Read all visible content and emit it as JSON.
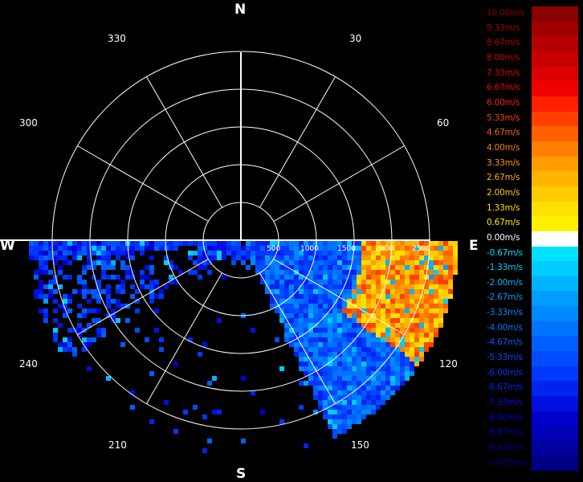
{
  "compass": {
    "north": "N",
    "east": "E",
    "south": "S",
    "west": "W"
  },
  "bearings": [
    "30",
    "60",
    "120",
    "150",
    "210",
    "240",
    "300",
    "330"
  ],
  "range_labels": [
    "500",
    "1000",
    "1500",
    "2000",
    "2500"
  ],
  "legend": {
    "title": "",
    "items": [
      {
        "label": "10.00m/s",
        "color": "#8b0000"
      },
      {
        "label": "9.33m/s",
        "color": "#a00000"
      },
      {
        "label": "8.67m/s",
        "color": "#b40000"
      },
      {
        "label": "8.00m/s",
        "color": "#c80000"
      },
      {
        "label": "7.33m/s",
        "color": "#dc0000"
      },
      {
        "label": "6.67m/s",
        "color": "#f00000"
      },
      {
        "label": "6.00m/s",
        "color": "#ff2000"
      },
      {
        "label": "5.33m/s",
        "color": "#ff4000"
      },
      {
        "label": "4.67m/s",
        "color": "#ff6000"
      },
      {
        "label": "4.00m/s",
        "color": "#ff8000"
      },
      {
        "label": "3.33m/s",
        "color": "#ff9c00"
      },
      {
        "label": "2.67m/s",
        "color": "#ffb400"
      },
      {
        "label": "2.00m/s",
        "color": "#ffcc00"
      },
      {
        "label": "1.33m/s",
        "color": "#ffe000"
      },
      {
        "label": "0.67m/s",
        "color": "#fff000"
      },
      {
        "label": "0.00m/s",
        "color": "#ffffff"
      },
      {
        "label": "-0.67m/s",
        "color": "#00e0ff"
      },
      {
        "label": "-1.33m/s",
        "color": "#00ccff"
      },
      {
        "label": "-2.00m/s",
        "color": "#00b4ff"
      },
      {
        "label": "-2.67m/s",
        "color": "#009cff"
      },
      {
        "label": "-3.33m/s",
        "color": "#0088ff"
      },
      {
        "label": "-4.00m/s",
        "color": "#0074ff"
      },
      {
        "label": "-4.67m/s",
        "color": "#0060ff"
      },
      {
        "label": "-5.33m/s",
        "color": "#004cff"
      },
      {
        "label": "-6.00m/s",
        "color": "#0038ff"
      },
      {
        "label": "-6.67m/s",
        "color": "#0024f0"
      },
      {
        "label": "-7.33m/s",
        "color": "#0010e0"
      },
      {
        "label": "-8.00m/s",
        "color": "#0000cc"
      },
      {
        "label": "-8.67m/s",
        "color": "#0000b4"
      },
      {
        "label": "-9.33m/s",
        "color": "#00009c"
      },
      {
        "label": "-10.00m/s",
        "color": "#000084"
      }
    ]
  }
}
